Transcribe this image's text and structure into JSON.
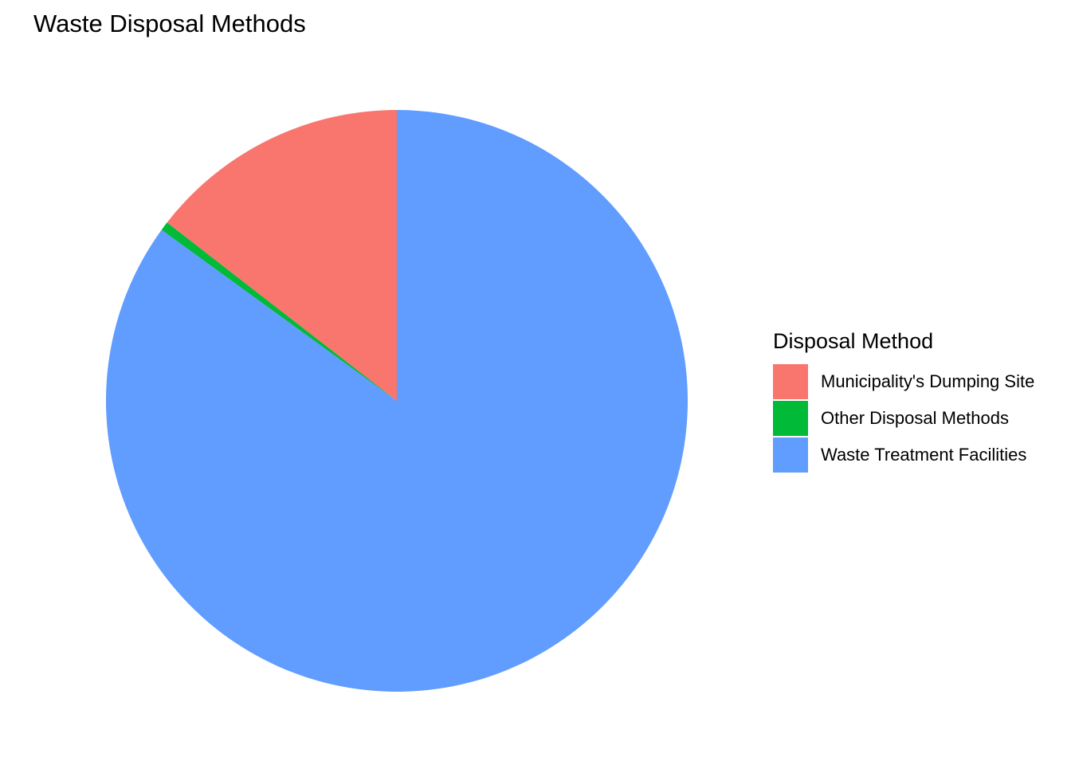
{
  "chart_data": {
    "type": "pie",
    "title": "Waste Disposal Methods",
    "legend_title": "Disposal Method",
    "legend_position": "right",
    "start": "top",
    "direction": "counterclockwise",
    "slices": [
      {
        "label": "Municipality's Dumping Site",
        "value": 14.5,
        "color": "#F8766D"
      },
      {
        "label": "Other Disposal Methods",
        "value": 0.5,
        "color": "#00BA38"
      },
      {
        "label": "Waste Treatment Facilities",
        "value": 85.0,
        "color": "#619CFF"
      }
    ]
  }
}
